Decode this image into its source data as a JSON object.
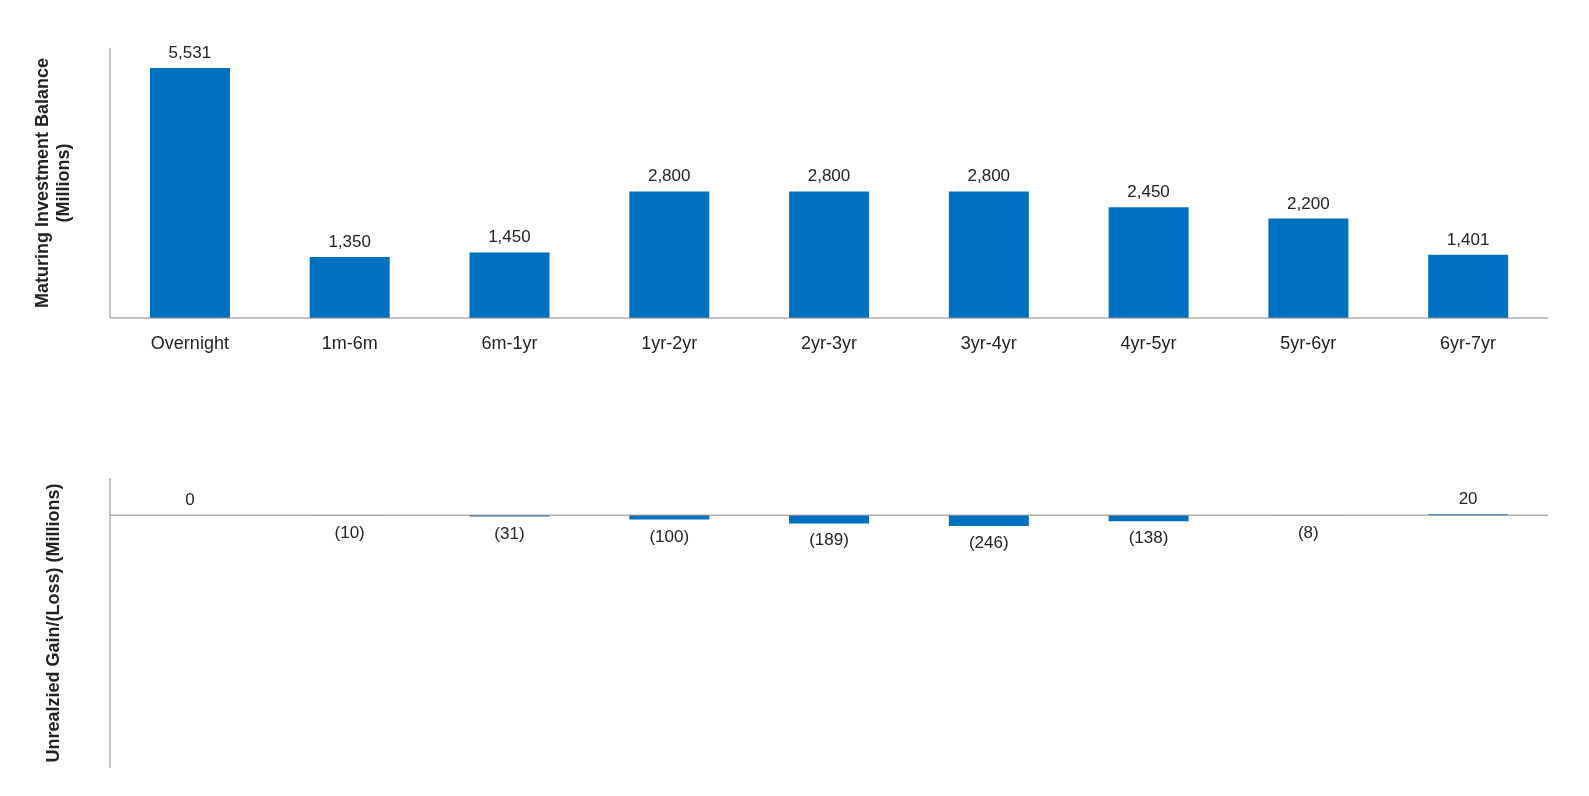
{
  "chart_data": [
    {
      "type": "bar",
      "ylabel": "Maturing Investment Balance (Millions)",
      "categories": [
        "Overnight",
        "1m-6m",
        "6m-1yr",
        "1yr-2yr",
        "2yr-3yr",
        "3yr-4yr",
        "4yr-5yr",
        "5yr-6yr",
        "6yr-7yr"
      ],
      "values": [
        5531,
        1350,
        1450,
        2800,
        2800,
        2800,
        2450,
        2200,
        1401
      ],
      "color": "#0070c0",
      "value_labels": [
        "5,531",
        "1,350",
        "1,450",
        "2,800",
        "2,800",
        "2,800",
        "2,450",
        "2,200",
        "1,401"
      ],
      "tick_labels": "x"
    },
    {
      "type": "bar",
      "ylabel": "Unrealzied Gain/(Loss) (Millions)",
      "categories": [
        null,
        null,
        null,
        null,
        null,
        null,
        null,
        null,
        null
      ],
      "values": [
        0,
        -10,
        -31,
        -100,
        -189,
        -246,
        -138,
        -8,
        20
      ],
      "color": "#0070c0",
      "value_labels": [
        "0",
        "(10)",
        "(31)",
        "(100)",
        "(189)",
        "(246)",
        "(138)",
        "(8)",
        "20"
      ],
      "tick_labels": false
    }
  ]
}
